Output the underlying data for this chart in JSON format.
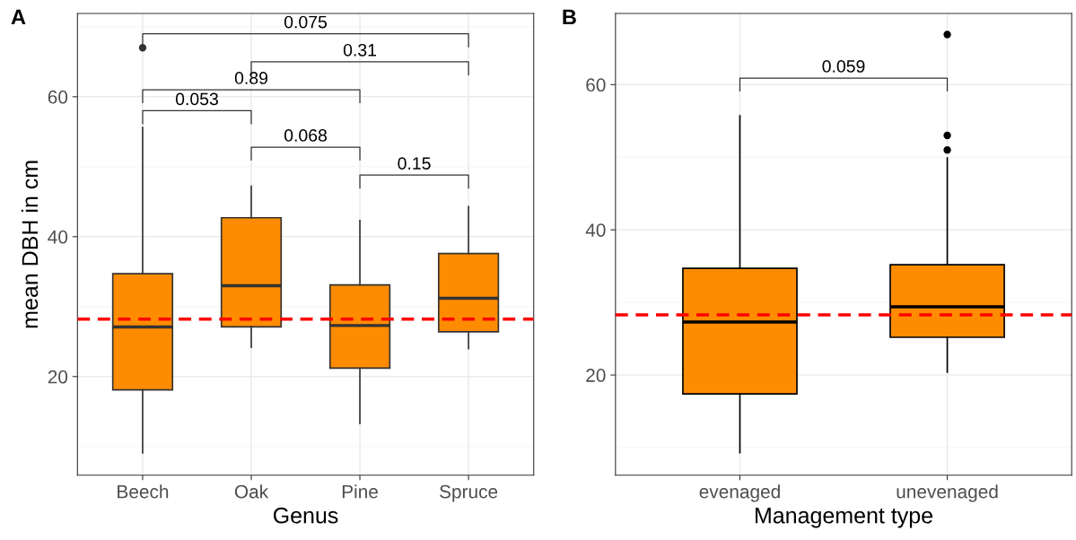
{
  "chart_data": [
    {
      "type": "box",
      "title": "A",
      "xlabel": "Genus",
      "ylabel": "mean DBH in cm",
      "categories": [
        "Beech",
        "Oak",
        "Pine",
        "Spruce"
      ],
      "series": [
        {
          "color": "#ff8c00",
          "boxes": [
            {
              "low": 9.1,
              "q1": 18.1,
              "median": 27.1,
              "q3": 34.7,
              "high": 55.6,
              "outliers": [
                67
              ]
            },
            {
              "low": 24.2,
              "q1": 27.1,
              "median": 33.0,
              "q3": 42.7,
              "high": 47.2
            },
            {
              "low": 13.3,
              "q1": 21.2,
              "median": 27.3,
              "q3": 33.1,
              "high": 42.3
            },
            {
              "low": 24.0,
              "q1": 26.4,
              "median": 31.2,
              "q3": 37.6,
              "high": 44.3
            }
          ]
        }
      ],
      "ylim": [
        5.9,
        71.9
      ],
      "yticks": [
        20,
        40,
        60
      ],
      "grid": true,
      "ref_lines": [
        {
          "axis": "y",
          "value": 28.2,
          "color": "#ff0000",
          "line_style": "dashed"
        }
      ],
      "annotations": [
        "0.075",
        "0.31",
        "0.89",
        "0.053",
        "0.068",
        "0.15"
      ]
    },
    {
      "type": "box",
      "title": "B",
      "xlabel": "Management type",
      "categories": [
        "evenaged",
        "unevenaged"
      ],
      "series": [
        {
          "color": "#ff8c00",
          "boxes": [
            {
              "low": 9.3,
              "q1": 17.4,
              "median": 27.3,
              "q3": 34.7,
              "high": 55.7
            },
            {
              "low": 20.4,
              "q1": 25.2,
              "median": 29.4,
              "q3": 35.2,
              "high": 49.9,
              "outliers": [
                66.9,
                53.0,
                51.0
              ]
            }
          ]
        }
      ],
      "ylim": [
        6.2,
        69.8
      ],
      "yticks": [
        20,
        40,
        60
      ],
      "grid": true,
      "ref_lines": [
        {
          "axis": "y",
          "value": 28.3,
          "color": "#ff0000",
          "line_style": "dashed"
        }
      ],
      "annotations": [
        "0.059"
      ]
    }
  ]
}
